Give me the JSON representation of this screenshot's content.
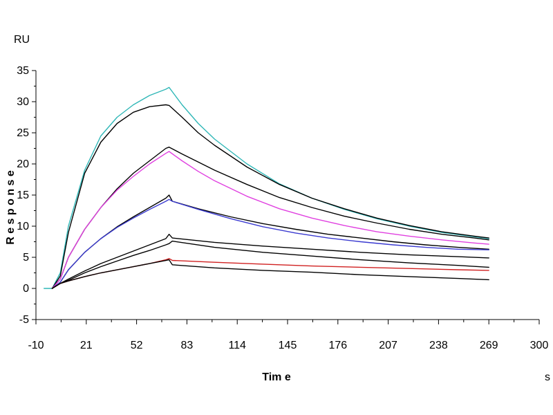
{
  "chart_data": {
    "type": "line",
    "title": "",
    "xlabel": "Tim e",
    "ylabel": "R e s p o n s e",
    "x_unit": "s",
    "y_unit": "RU",
    "xlim": [
      -10,
      300
    ],
    "ylim": [
      -5,
      35
    ],
    "x_ticks": [
      "-10",
      "21",
      "52",
      "83",
      "114",
      "145",
      "176",
      "207",
      "238",
      "269",
      "300"
    ],
    "y_ticks": [
      "-5",
      "0",
      "5",
      "10",
      "15",
      "20",
      "25",
      "30",
      "35"
    ],
    "grid": false,
    "legend": "none",
    "series": [
      {
        "color": "#2fb7b7",
        "x": [
          -5,
          0,
          5,
          10,
          20,
          30,
          40,
          50,
          60,
          70,
          72,
          80,
          90,
          100,
          120,
          140,
          160,
          180,
          200,
          220,
          240,
          260,
          269
        ],
        "y": [
          0,
          0,
          2.5,
          10,
          19,
          24.5,
          27.5,
          29.5,
          31,
          32,
          32.3,
          29.5,
          26.5,
          24,
          20,
          16.8,
          14.5,
          12.7,
          11.2,
          10,
          9,
          8.3,
          8.0
        ]
      },
      {
        "color": "#000000",
        "x": [
          0,
          5,
          10,
          20,
          30,
          40,
          50,
          60,
          70,
          72,
          80,
          90,
          100,
          120,
          140,
          160,
          180,
          200,
          220,
          240,
          260,
          269
        ],
        "y": [
          0,
          2,
          9,
          18.5,
          23.5,
          26.5,
          28.3,
          29.2,
          29.5,
          29.4,
          27.5,
          25,
          23,
          19.5,
          16.7,
          14.5,
          12.8,
          11.3,
          10.1,
          9.1,
          8.4,
          8.1
        ]
      },
      {
        "color": "#000000",
        "x": [
          0,
          5,
          10,
          20,
          30,
          40,
          50,
          60,
          70,
          72,
          80,
          90,
          100,
          120,
          140,
          160,
          180,
          200,
          220,
          240,
          260,
          269
        ],
        "y": [
          0,
          1.5,
          5,
          9.5,
          13,
          16,
          18.5,
          20.5,
          22.5,
          22.7,
          21.6,
          20.3,
          19,
          16.7,
          14.6,
          13,
          11.6,
          10.5,
          9.5,
          8.7,
          8.1,
          7.8
        ]
      },
      {
        "color": "#e040e0",
        "x": [
          0,
          5,
          10,
          20,
          30,
          40,
          50,
          60,
          70,
          72,
          80,
          90,
          100,
          120,
          140,
          160,
          180,
          200,
          220,
          240,
          260,
          269
        ],
        "y": [
          0,
          1.5,
          5,
          9.5,
          13,
          15.8,
          18,
          20,
          21.7,
          22,
          20.5,
          18.8,
          17.3,
          14.8,
          12.8,
          11.3,
          10.1,
          9.1,
          8.4,
          7.8,
          7.3,
          7.1
        ]
      },
      {
        "color": "#000000",
        "x": [
          0,
          5,
          10,
          20,
          30,
          40,
          50,
          60,
          70,
          72,
          74,
          90,
          110,
          130,
          150,
          170,
          190,
          210,
          230,
          250,
          269
        ],
        "y": [
          0,
          1,
          3,
          5.8,
          8,
          9.9,
          11.5,
          13,
          14.5,
          15,
          14,
          12.8,
          11.5,
          10.4,
          9.5,
          8.7,
          8.1,
          7.5,
          7.0,
          6.6,
          6.3
        ]
      },
      {
        "color": "#3a3ad0",
        "x": [
          0,
          5,
          10,
          20,
          30,
          40,
          50,
          60,
          70,
          72,
          74,
          90,
          110,
          130,
          150,
          170,
          190,
          210,
          230,
          250,
          269
        ],
        "y": [
          0,
          1,
          3,
          5.8,
          8,
          9.8,
          11.3,
          12.7,
          14,
          14.3,
          14,
          12.7,
          11.2,
          9.9,
          8.9,
          8.1,
          7.5,
          7.0,
          6.6,
          6.3,
          6.2
        ]
      },
      {
        "color": "#000000",
        "x": [
          0,
          5,
          10,
          20,
          30,
          40,
          50,
          60,
          70,
          72,
          74,
          100,
          130,
          160,
          190,
          220,
          250,
          269
        ],
        "y": [
          0,
          0.8,
          1.5,
          2.8,
          4,
          5,
          6,
          7,
          8,
          8.7,
          8.1,
          7.4,
          6.8,
          6.3,
          5.8,
          5.4,
          5.1,
          4.9
        ]
      },
      {
        "color": "#000000",
        "x": [
          0,
          5,
          10,
          20,
          30,
          40,
          50,
          60,
          70,
          72,
          74,
          100,
          130,
          160,
          190,
          220,
          250,
          269
        ],
        "y": [
          0,
          0.8,
          1.3,
          2.5,
          3.5,
          4.4,
          5.3,
          6.1,
          7,
          7.2,
          7.6,
          6.6,
          5.8,
          5.2,
          4.6,
          4.1,
          3.7,
          3.4
        ]
      },
      {
        "color": "#d02020",
        "x": [
          0,
          5,
          10,
          20,
          30,
          40,
          50,
          60,
          70,
          72,
          74,
          100,
          130,
          160,
          190,
          220,
          250,
          269
        ],
        "y": [
          0,
          0.8,
          1.2,
          1.9,
          2.5,
          3.0,
          3.5,
          4.0,
          4.6,
          4.8,
          4.5,
          4.2,
          3.9,
          3.6,
          3.4,
          3.2,
          3.0,
          2.9
        ]
      },
      {
        "color": "#000000",
        "x": [
          0,
          5,
          10,
          20,
          30,
          40,
          50,
          60,
          70,
          72,
          74,
          100,
          130,
          160,
          190,
          220,
          250,
          269
        ],
        "y": [
          0,
          0.8,
          1.2,
          1.9,
          2.5,
          3.0,
          3.5,
          4.0,
          4.5,
          4.6,
          3.8,
          3.3,
          2.9,
          2.6,
          2.2,
          1.9,
          1.6,
          1.4
        ]
      }
    ]
  }
}
